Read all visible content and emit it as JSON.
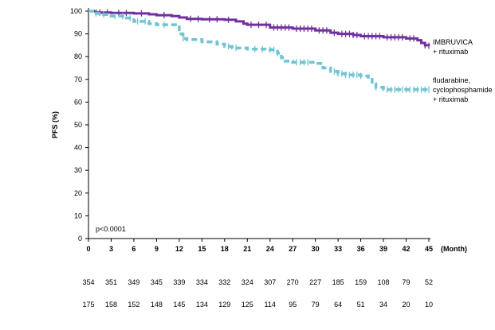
{
  "chart_data": {
    "type": "line",
    "title": "",
    "ylabel": "PFS (%)",
    "xlabel": "(Month)",
    "xlim": [
      0,
      45
    ],
    "ylim": [
      0,
      100
    ],
    "x_ticks": [
      0,
      3,
      6,
      9,
      12,
      15,
      18,
      21,
      24,
      27,
      30,
      33,
      36,
      39,
      42,
      45
    ],
    "y_ticks": [
      0,
      10,
      20,
      30,
      40,
      50,
      60,
      70,
      80,
      90,
      100
    ],
    "grid": false,
    "annotation": "p<0.0001",
    "series": [
      {
        "name": "IMBRUVICA + rituximab",
        "label_lines": [
          "IMBRUVICA",
          "+ rituximab"
        ],
        "color": "#7030a0",
        "style": "solid",
        "points": [
          [
            0,
            100
          ],
          [
            1,
            99.4
          ],
          [
            3,
            99.2
          ],
          [
            6,
            99
          ],
          [
            8,
            98.6
          ],
          [
            9,
            98.2
          ],
          [
            11,
            97.8
          ],
          [
            12,
            97.2
          ],
          [
            13,
            96.6
          ],
          [
            15,
            96.4
          ],
          [
            18,
            96.2
          ],
          [
            19.5,
            95.5
          ],
          [
            20.5,
            94.5
          ],
          [
            21,
            94
          ],
          [
            24,
            92.8
          ],
          [
            27,
            92.3
          ],
          [
            30,
            91.5
          ],
          [
            32,
            90.5
          ],
          [
            33,
            90
          ],
          [
            35,
            89.5
          ],
          [
            36,
            89
          ],
          [
            39,
            88.5
          ],
          [
            42,
            88
          ],
          [
            43.5,
            87.2
          ],
          [
            44,
            86
          ],
          [
            44.5,
            85
          ],
          [
            45,
            84.8
          ]
        ],
        "censor_x": [
          1.5,
          2.5,
          4,
          5,
          7,
          10,
          13.5,
          14.5,
          16,
          17,
          18.5,
          21.5,
          22.5,
          23.5,
          24.5,
          25,
          25.5,
          26,
          26.5,
          27.5,
          28,
          28.5,
          29,
          29.5,
          30.5,
          31,
          31.5,
          32.5,
          33.5,
          34,
          34.5,
          35,
          35.5,
          36.5,
          37,
          37.5,
          38,
          38.5,
          39.5,
          40,
          40.5,
          41,
          41.5,
          42.5,
          43,
          44.5,
          45
        ]
      },
      {
        "name": "fludarabine, cyclophosphamide + rituximab",
        "label_lines": [
          "fludarabine,",
          "cyclophosphamide",
          "+ rituximab"
        ],
        "color": "#6fc6d2",
        "style": "dashed",
        "points": [
          [
            0,
            100
          ],
          [
            1,
            99
          ],
          [
            2,
            98.5
          ],
          [
            3,
            97.8
          ],
          [
            5,
            97
          ],
          [
            6,
            95.5
          ],
          [
            8,
            94.5
          ],
          [
            9,
            94
          ],
          [
            11.5,
            93
          ],
          [
            12,
            90
          ],
          [
            12.5,
            88
          ],
          [
            13,
            87.5
          ],
          [
            15,
            86.5
          ],
          [
            17,
            85.5
          ],
          [
            18,
            84.5
          ],
          [
            19,
            83.8
          ],
          [
            21,
            83.3
          ],
          [
            24,
            83
          ],
          [
            25,
            81.5
          ],
          [
            25.5,
            79.5
          ],
          [
            26,
            78
          ],
          [
            27,
            77.5
          ],
          [
            29,
            77.5
          ],
          [
            30,
            77
          ],
          [
            31,
            75
          ],
          [
            32,
            73.5
          ],
          [
            33,
            72.5
          ],
          [
            34,
            72
          ],
          [
            36,
            71.5
          ],
          [
            37,
            70
          ],
          [
            37.5,
            68
          ],
          [
            38,
            66.5
          ],
          [
            39,
            65.5
          ],
          [
            45,
            65.5
          ]
        ],
        "censor_x": [
          1,
          2,
          3.5,
          4.5,
          5.5,
          6.5,
          7.5,
          10,
          12.5,
          18.5,
          19.5,
          22,
          23,
          24,
          24.5,
          25,
          27.5,
          28,
          28.5,
          29,
          32.5,
          33,
          33.5,
          34,
          34.5,
          35,
          35.5,
          36,
          38,
          39.5,
          40,
          40.5,
          41,
          41.5,
          42,
          42.5,
          43,
          43.5,
          44,
          44.5,
          45
        ]
      }
    ],
    "risk_table": {
      "rows": [
        [
          "354",
          "351",
          "349",
          "345",
          "339",
          "334",
          "332",
          "324",
          "307",
          "270",
          "227",
          "185",
          "159",
          "108",
          "79",
          "52"
        ],
        [
          "175",
          "158",
          "152",
          "148",
          "145",
          "134",
          "129",
          "125",
          "114",
          "95",
          "79",
          "64",
          "51",
          "34",
          "20",
          "10"
        ]
      ]
    }
  }
}
